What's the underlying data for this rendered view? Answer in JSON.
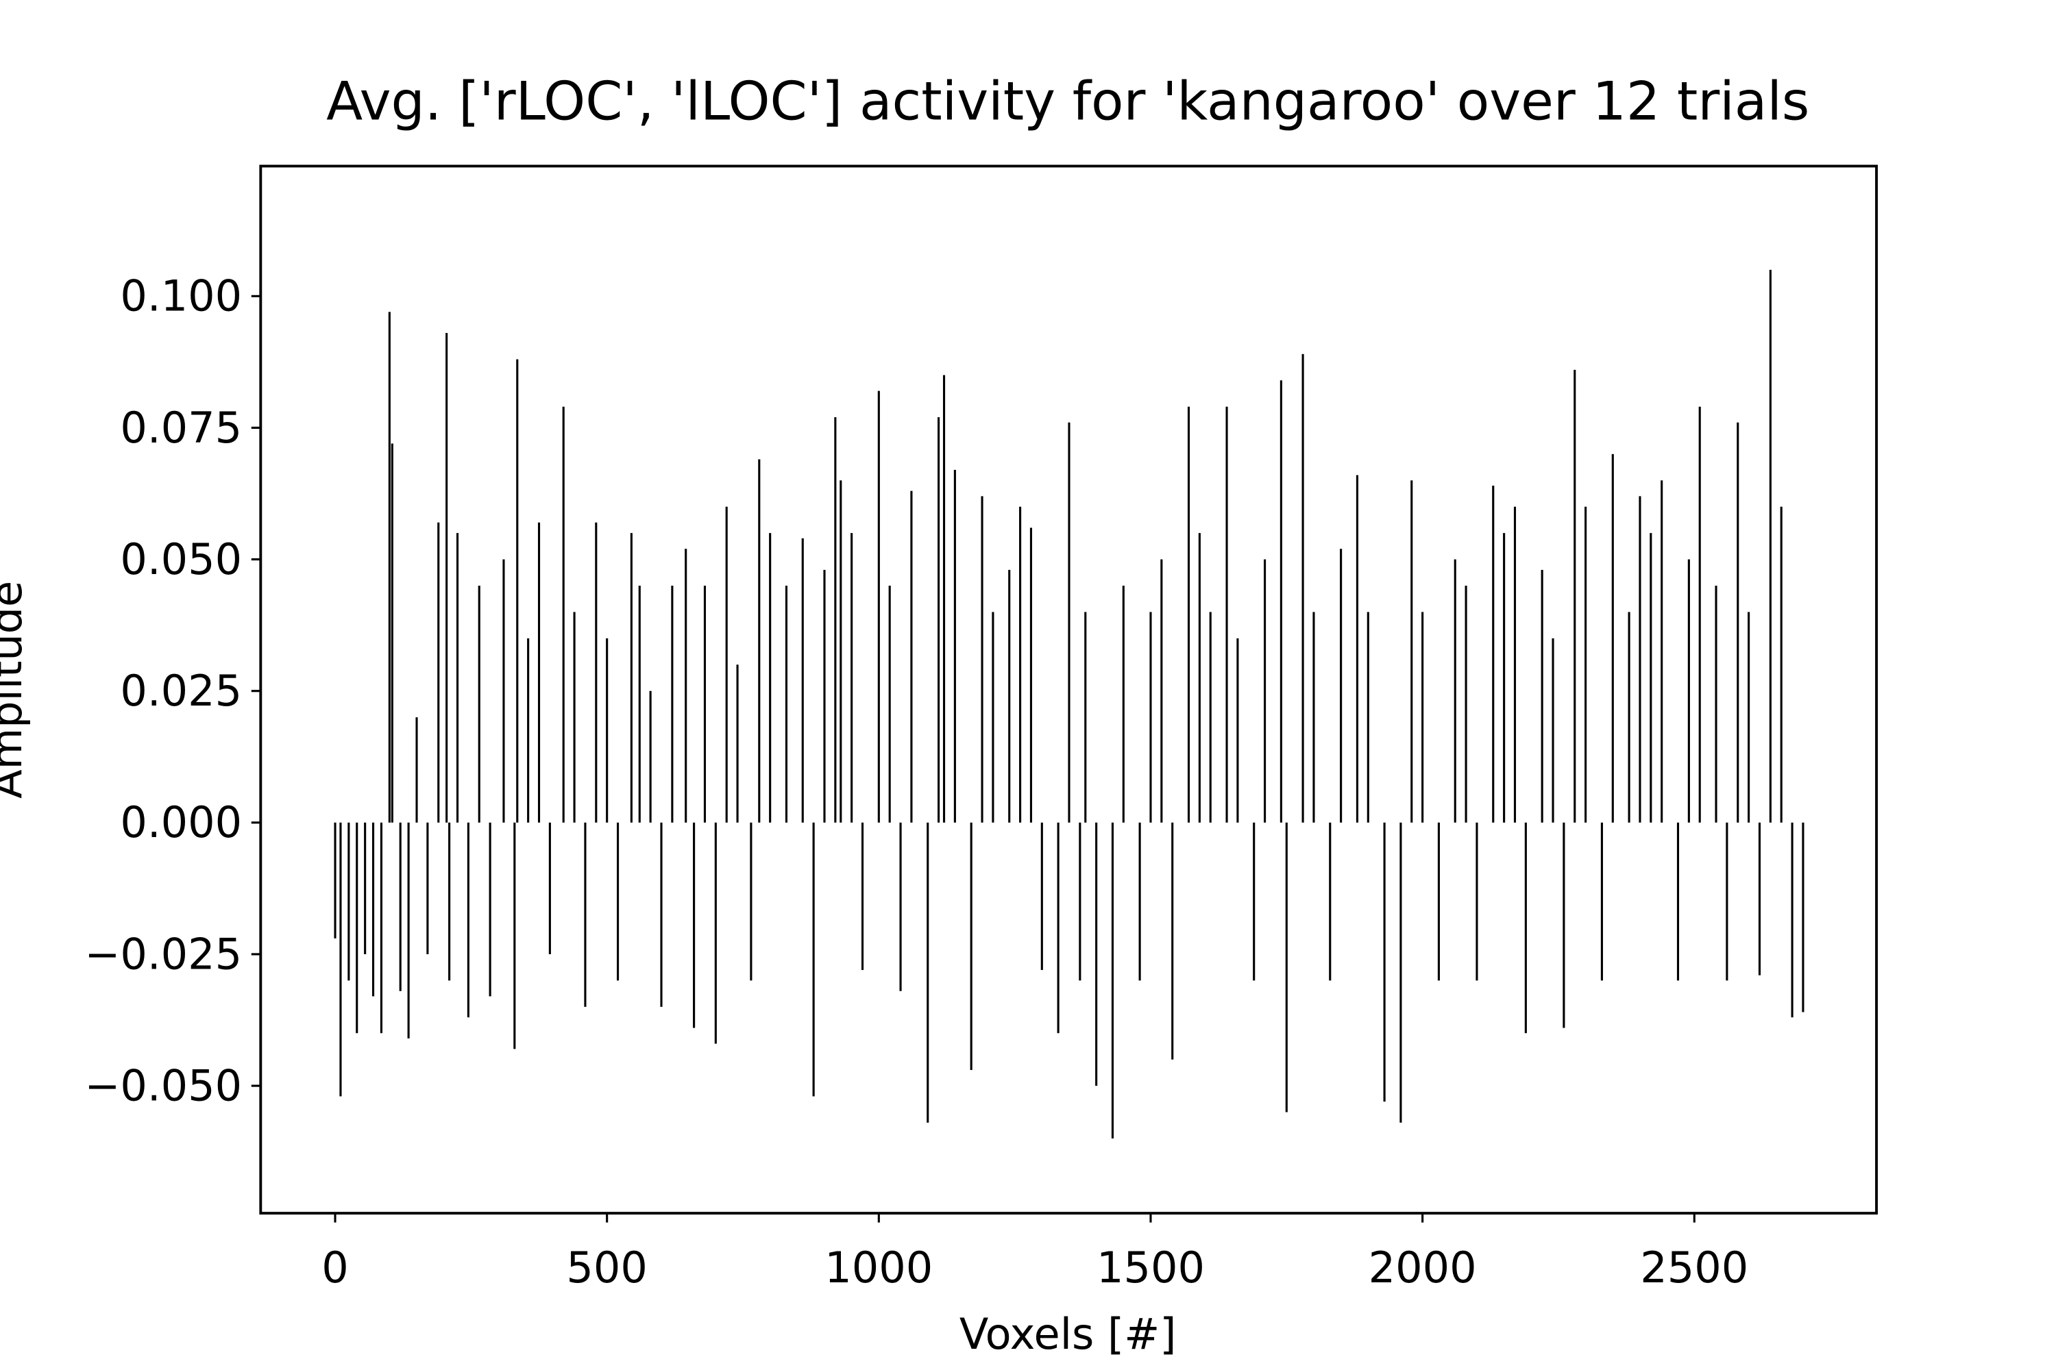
{
  "chart_data": {
    "type": "bar",
    "title": "Avg. ['rLOC', 'lLOC'] activity for 'kangaroo' over 12 trials",
    "xlabel": "Voxels [#]",
    "ylabel": "Amplitude",
    "color": "#000000",
    "xlim": [
      -137,
      2835
    ],
    "ylim": [
      -0.0742,
      0.1247
    ],
    "xticks": [
      0,
      500,
      1000,
      1500,
      2000,
      2500
    ],
    "yticks": [
      {
        "value": -0.05,
        "label": "−0.050"
      },
      {
        "value": -0.025,
        "label": "−0.025"
      },
      {
        "value": 0,
        "label": "0.000"
      },
      0.025,
      {
        "value": 0.05,
        "label": "0.050"
      },
      0.075,
      {
        "value": 0.1,
        "label": "0.100"
      }
    ],
    "x": [
      0,
      10,
      25,
      40,
      55,
      70,
      85,
      100,
      105,
      120,
      135,
      150,
      170,
      190,
      205,
      210,
      225,
      245,
      265,
      285,
      310,
      330,
      335,
      355,
      375,
      395,
      420,
      440,
      460,
      480,
      500,
      520,
      545,
      560,
      580,
      600,
      620,
      645,
      660,
      680,
      700,
      720,
      740,
      765,
      780,
      800,
      830,
      860,
      880,
      900,
      920,
      930,
      950,
      970,
      1000,
      1020,
      1040,
      1060,
      1090,
      1110,
      1120,
      1140,
      1170,
      1190,
      1210,
      1240,
      1260,
      1280,
      1300,
      1330,
      1350,
      1370,
      1380,
      1400,
      1430,
      1450,
      1480,
      1500,
      1520,
      1540,
      1570,
      1590,
      1610,
      1640,
      1660,
      1690,
      1710,
      1740,
      1750,
      1780,
      1800,
      1830,
      1850,
      1880,
      1900,
      1930,
      1960,
      1980,
      2000,
      2030,
      2060,
      2080,
      2100,
      2130,
      2150,
      2170,
      2190,
      2220,
      2240,
      2260,
      2280,
      2300,
      2330,
      2350,
      2380,
      2400,
      2420,
      2440,
      2470,
      2490,
      2510,
      2540,
      2560,
      2580,
      2600,
      2620,
      2640,
      2660,
      2680,
      2700
    ],
    "values": [
      -0.022,
      -0.052,
      -0.03,
      -0.04,
      -0.025,
      -0.033,
      -0.04,
      0.097,
      0.072,
      -0.032,
      -0.041,
      0.02,
      -0.025,
      0.057,
      0.093,
      -0.03,
      0.055,
      -0.037,
      0.045,
      -0.033,
      0.05,
      -0.043,
      0.088,
      0.035,
      0.057,
      -0.025,
      0.079,
      0.04,
      -0.035,
      0.057,
      0.035,
      -0.03,
      0.055,
      0.045,
      0.025,
      -0.035,
      0.045,
      0.052,
      -0.039,
      0.045,
      -0.042,
      0.06,
      0.03,
      -0.03,
      0.069,
      0.055,
      0.045,
      0.054,
      -0.052,
      0.048,
      0.077,
      0.065,
      0.055,
      -0.028,
      0.082,
      0.045,
      -0.032,
      0.063,
      -0.057,
      0.077,
      0.085,
      0.067,
      -0.047,
      0.062,
      0.04,
      0.048,
      0.06,
      0.056,
      -0.028,
      -0.04,
      0.076,
      -0.03,
      0.04,
      -0.05,
      -0.06,
      0.045,
      -0.03,
      0.04,
      0.05,
      -0.045,
      0.079,
      0.055,
      0.04,
      0.079,
      0.035,
      -0.03,
      0.05,
      0.084,
      -0.055,
      0.089,
      0.04,
      -0.03,
      0.052,
      0.066,
      0.04,
      -0.053,
      -0.057,
      0.065,
      0.04,
      -0.03,
      0.05,
      0.045,
      -0.03,
      0.064,
      0.055,
      0.06,
      -0.04,
      0.048,
      0.035,
      -0.039,
      0.086,
      0.06,
      -0.03,
      0.07,
      0.04,
      0.062,
      0.055,
      0.065,
      -0.03,
      0.05,
      0.079,
      0.045,
      -0.03,
      0.076,
      0.04,
      -0.029,
      0.105,
      0.06,
      -0.037,
      -0.036
    ]
  }
}
